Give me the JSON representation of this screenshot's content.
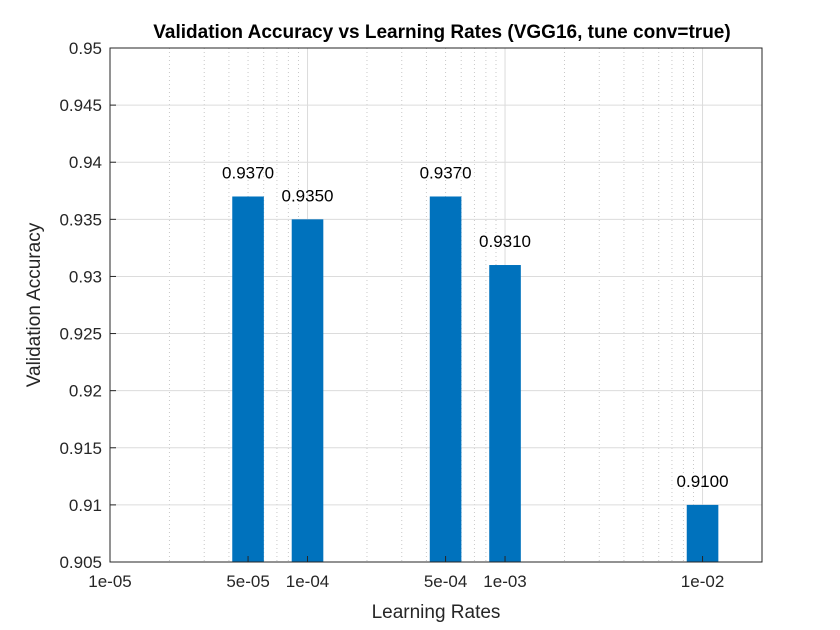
{
  "chart_data": {
    "type": "bar",
    "title": "Validation Accuracy vs Learning Rates (VGG16, tune conv=true)",
    "xlabel": "Learning Rates",
    "ylabel": "Validation Accuracy",
    "x_scale": "log",
    "xlim": [
      1e-05,
      0.02
    ],
    "ylim": [
      0.905,
      0.95
    ],
    "x_ticks": [
      {
        "value": 1e-05,
        "label": "1e-05"
      },
      {
        "value": 5e-05,
        "label": "5e-05"
      },
      {
        "value": 0.0001,
        "label": "1e-04"
      },
      {
        "value": 0.0005,
        "label": "5e-04"
      },
      {
        "value": 0.001,
        "label": "1e-03"
      },
      {
        "value": 0.01,
        "label": "1e-02"
      }
    ],
    "y_ticks": [
      "0.905",
      "0.91",
      "0.915",
      "0.92",
      "0.925",
      "0.93",
      "0.935",
      "0.94",
      "0.945",
      "0.95"
    ],
    "grid": true,
    "bar_color": "#0072BD",
    "bars": [
      {
        "x": 5e-05,
        "value": 0.937,
        "label": "0.9370"
      },
      {
        "x": 0.0001,
        "value": 0.935,
        "label": "0.9350"
      },
      {
        "x": 0.0005,
        "value": 0.937,
        "label": "0.9370"
      },
      {
        "x": 0.001,
        "value": 0.931,
        "label": "0.9310"
      },
      {
        "x": 0.01,
        "value": 0.91,
        "label": "0.9100"
      }
    ]
  }
}
